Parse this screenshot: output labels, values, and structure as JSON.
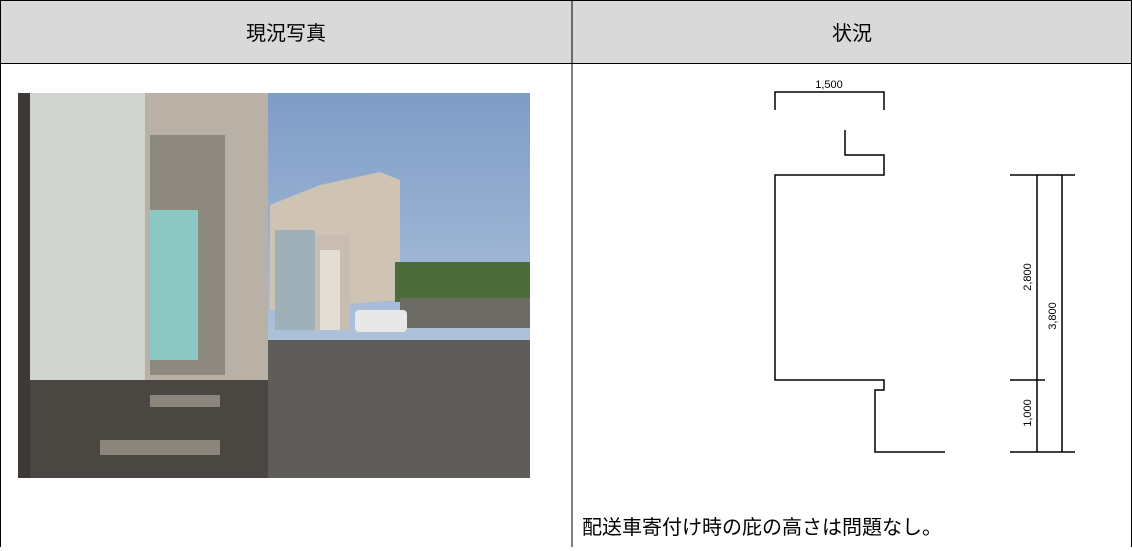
{
  "header": {
    "photo": "現況写真",
    "status": "状況"
  },
  "diagram": {
    "width_label": "1,500",
    "upper_height_label": "2,800",
    "total_height_label": "3,800",
    "lower_height_label": "1,000"
  },
  "note": "配送車寄付け時の庇の高さは問題なし。"
}
